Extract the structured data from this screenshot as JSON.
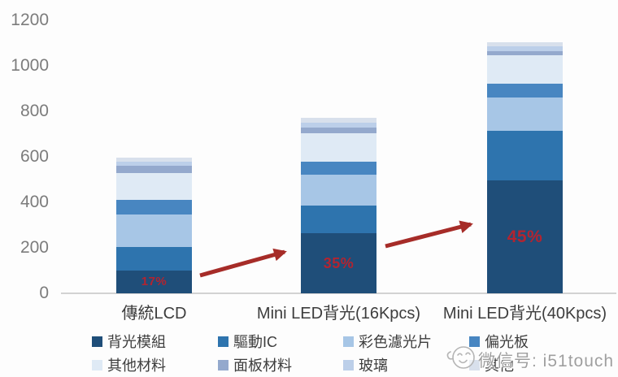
{
  "chart_data": {
    "type": "bar",
    "stacked": true,
    "title": "",
    "xlabel": "",
    "ylabel": "",
    "categories": [
      "傳統LCD",
      "Mini LED背光(16Kpcs)",
      "Mini LED背光(40Kpcs)"
    ],
    "series": [
      {
        "name": "背光模組",
        "color": "#1f4e79",
        "values": [
          100,
          265,
          495
        ]
      },
      {
        "name": "驅動IC",
        "color": "#2e74ae",
        "values": [
          105,
          120,
          220
        ]
      },
      {
        "name": "彩色濾光片",
        "color": "#a7c6e6",
        "values": [
          140,
          135,
          145
        ]
      },
      {
        "name": "偏光板",
        "color": "#4886c1",
        "values": [
          65,
          60,
          60
        ]
      },
      {
        "name": "其他材料",
        "color": "#dfeaf5",
        "values": [
          120,
          125,
          125
        ]
      },
      {
        "name": "面板材料",
        "color": "#94a9cd",
        "values": [
          30,
          25,
          20
        ]
      },
      {
        "name": "玻璃",
        "color": "#bccfe9",
        "values": [
          20,
          20,
          20
        ]
      },
      {
        "name": "其他",
        "color": "#d8e0ec",
        "values": [
          15,
          20,
          20
        ]
      }
    ],
    "bar_percent_labels": [
      "17%",
      "35%",
      "45%"
    ],
    "ylim": [
      0,
      1200
    ],
    "yticks": [
      0,
      200,
      400,
      600,
      800,
      1000,
      1200
    ],
    "grid": false,
    "legend_position": "bottom",
    "legend_rows": [
      [
        "背光模組",
        "驅動IC",
        "彩色濾光片",
        "偏光板"
      ],
      [
        "其他材料",
        "面板材料",
        "玻璃",
        "其他"
      ]
    ]
  },
  "annotations": {
    "arrow_color": "#a62c28",
    "percent_label_color": "#b32430"
  },
  "watermark": {
    "icon": "smiley-face-icon",
    "text": "微信号: i51touch"
  }
}
